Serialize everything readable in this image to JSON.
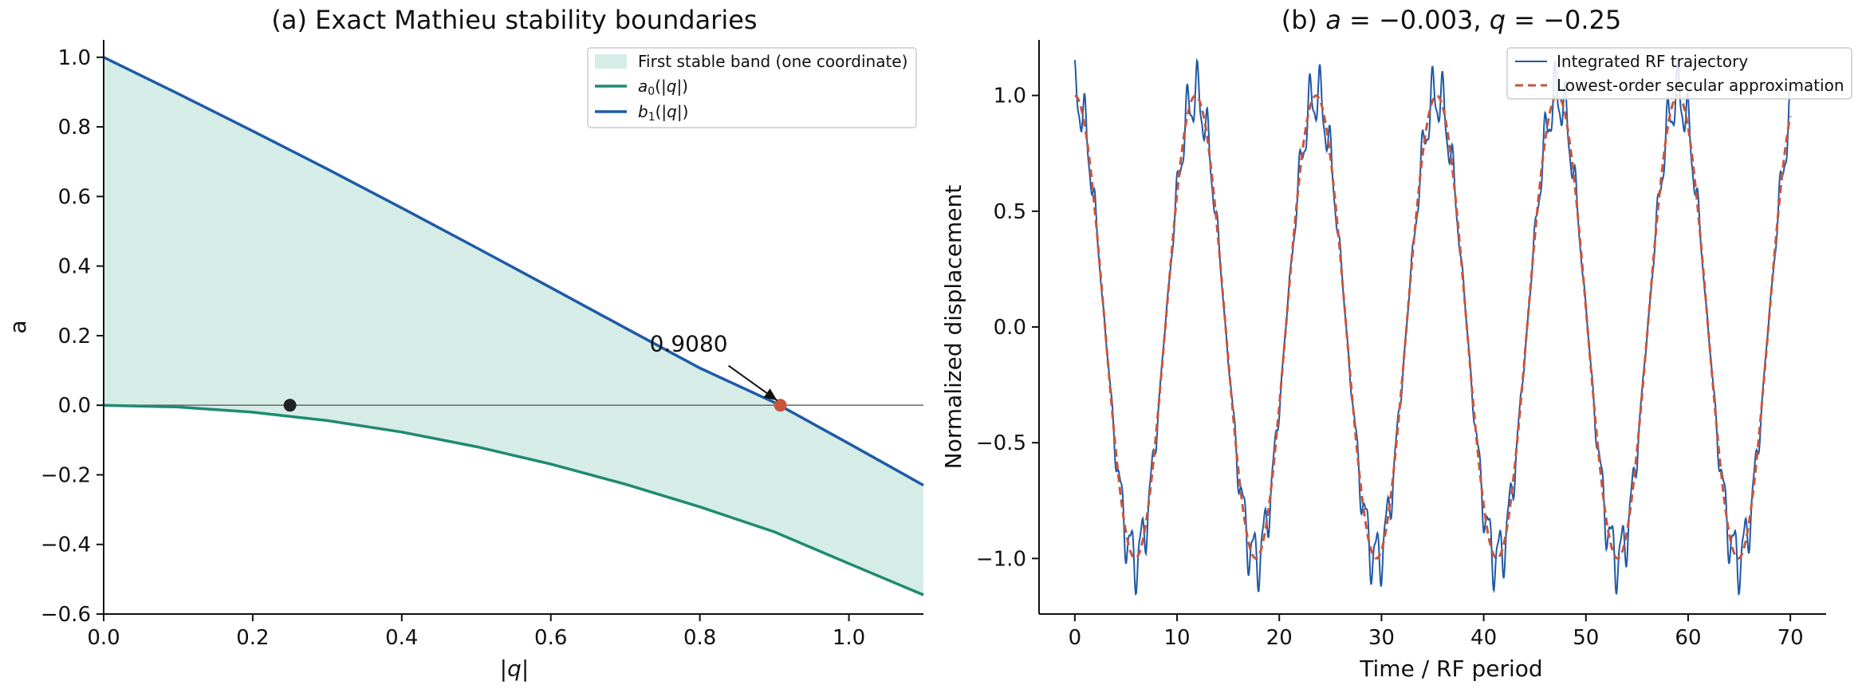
{
  "chart_data": [
    {
      "type": "line",
      "title": "(a) Exact Mathieu stability boundaries",
      "xlabel": "|q|",
      "ylabel": "a",
      "xlim": [
        0.0,
        1.1
      ],
      "ylim": [
        -0.6,
        1.05
      ],
      "x_ticks": [
        "0.0",
        "0.2",
        "0.4",
        "0.6",
        "0.8",
        "1.0"
      ],
      "y_ticks": [
        "−0.6",
        "−0.4",
        "−0.2",
        "0.0",
        "0.2",
        "0.4",
        "0.6",
        "0.8",
        "1.0"
      ],
      "legend_position": "top-right",
      "grid": false,
      "fill": {
        "name": "First stable band (one coordinate)",
        "color": "#d5ede6",
        "between": [
          "a0",
          "b1"
        ]
      },
      "series": [
        {
          "id": "a0",
          "name": "a₀(|q|)",
          "color": "#1f8a70",
          "x": [
            0.0,
            0.1,
            0.2,
            0.3,
            0.4,
            0.5,
            0.6,
            0.7,
            0.8,
            0.9,
            1.0,
            1.1
          ],
          "y": [
            0.0,
            -0.005,
            -0.02,
            -0.044,
            -0.077,
            -0.119,
            -0.169,
            -0.227,
            -0.292,
            -0.364,
            -0.455,
            -0.545
          ]
        },
        {
          "id": "b1",
          "name": "b₁(|q|)",
          "color": "#1f5aa6",
          "x": [
            0.0,
            0.1,
            0.2,
            0.3,
            0.4,
            0.5,
            0.6,
            0.7,
            0.8,
            0.9,
            1.0,
            1.1
          ],
          "y": [
            1.0,
            0.895,
            0.788,
            0.679,
            0.567,
            0.453,
            0.338,
            0.222,
            0.107,
            0.008,
            -0.11,
            -0.23
          ]
        }
      ],
      "hline": {
        "y": 0.0,
        "color": "#666666"
      },
      "points": [
        {
          "x": 0.25,
          "y": 0.0,
          "color": "#222222"
        },
        {
          "x": 0.908,
          "y": 0.0,
          "color": "#c8553d"
        }
      ],
      "annotation": {
        "text": "0.9080",
        "x": 0.908,
        "y": 0.0,
        "text_x": 0.785,
        "text_y": 0.155
      }
    },
    {
      "type": "line",
      "title": "(b) a = −0.003, q = −0.25",
      "title_parts": [
        "(b) ",
        "a",
        " = −0.003, ",
        "q",
        " = −0.25"
      ],
      "xlabel": "Time / RF period",
      "ylabel": "Normalized displacement",
      "xlim": [
        -3.5,
        73.5
      ],
      "ylim": [
        -1.24,
        1.24
      ],
      "x_ticks": [
        "0",
        "10",
        "20",
        "30",
        "40",
        "50",
        "60",
        "70"
      ],
      "y_ticks": [
        "−1.0",
        "−0.5",
        "0.0",
        "0.5",
        "1.0"
      ],
      "legend_position": "top-right",
      "grid": false,
      "secular_period": 11.8,
      "rf_ripple_amplitude": 0.12,
      "t_range": [
        0,
        70
      ],
      "series": [
        {
          "name": "Integrated RF trajectory",
          "color": "#1f5aa6",
          "style": "solid"
        },
        {
          "name": "Lowest-order secular approximation",
          "color": "#c8553d",
          "style": "dashed"
        }
      ]
    }
  ]
}
